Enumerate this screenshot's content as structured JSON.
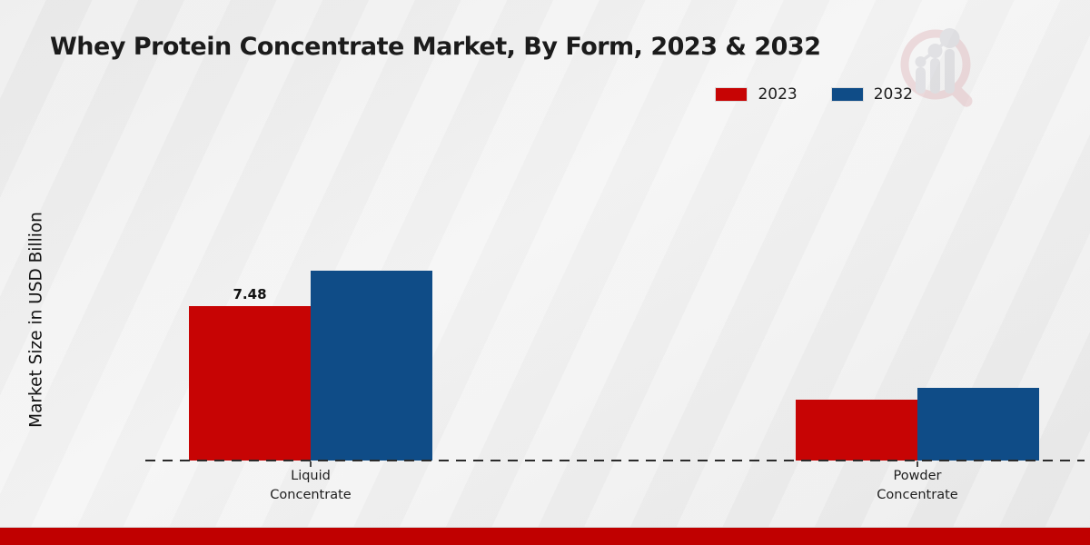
{
  "chart_data": {
    "type": "bar",
    "title": "Whey Protein Concentrate Market, By Form, 2023 & 2032",
    "ylabel": "Market Size in USD Billion",
    "categories": [
      "Liquid Concentrate",
      "Powder Concentrate"
    ],
    "series": [
      {
        "name": "2023",
        "color": "#c70404",
        "values": [
          7.48,
          2.95
        ],
        "value_labels": [
          "7.48",
          ""
        ]
      },
      {
        "name": "2032",
        "color": "#0f4c87",
        "values": [
          9.2,
          3.52
        ],
        "value_labels": [
          "",
          ""
        ]
      }
    ],
    "ylim": [
      0,
      10
    ],
    "grid": false,
    "legend_position": "top-right",
    "axis_style": "dashed-baseline-only",
    "footer_color": "#c00000",
    "logo": "magnifier-bar-chart-watermark"
  }
}
